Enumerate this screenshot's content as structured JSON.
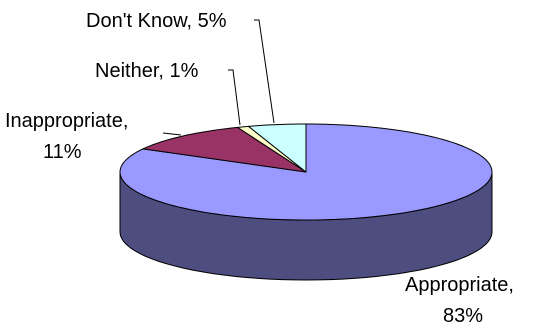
{
  "chart_data": {
    "type": "pie",
    "title": "",
    "style": "3d",
    "legend": "none",
    "slices": [
      {
        "name": "Appropriate",
        "value": 83,
        "label": "Appropriate,",
        "pct_label": "83%",
        "top_color": "#9999ff",
        "side_color": "#4d4d80"
      },
      {
        "name": "Inappropriate",
        "value": 11,
        "label": "Inappropriate,",
        "pct_label": "11%",
        "top_color": "#993366",
        "side_color": "#4d1a33"
      },
      {
        "name": "Neither",
        "value": 1,
        "label": "Neither, 1%",
        "pct_label": "",
        "top_color": "#ffffcc",
        "side_color": "#808066"
      },
      {
        "name": "Don't Know",
        "value": 5,
        "label": "Don't Know, 5%",
        "pct_label": "",
        "top_color": "#ccffff",
        "side_color": "#668080"
      }
    ]
  }
}
